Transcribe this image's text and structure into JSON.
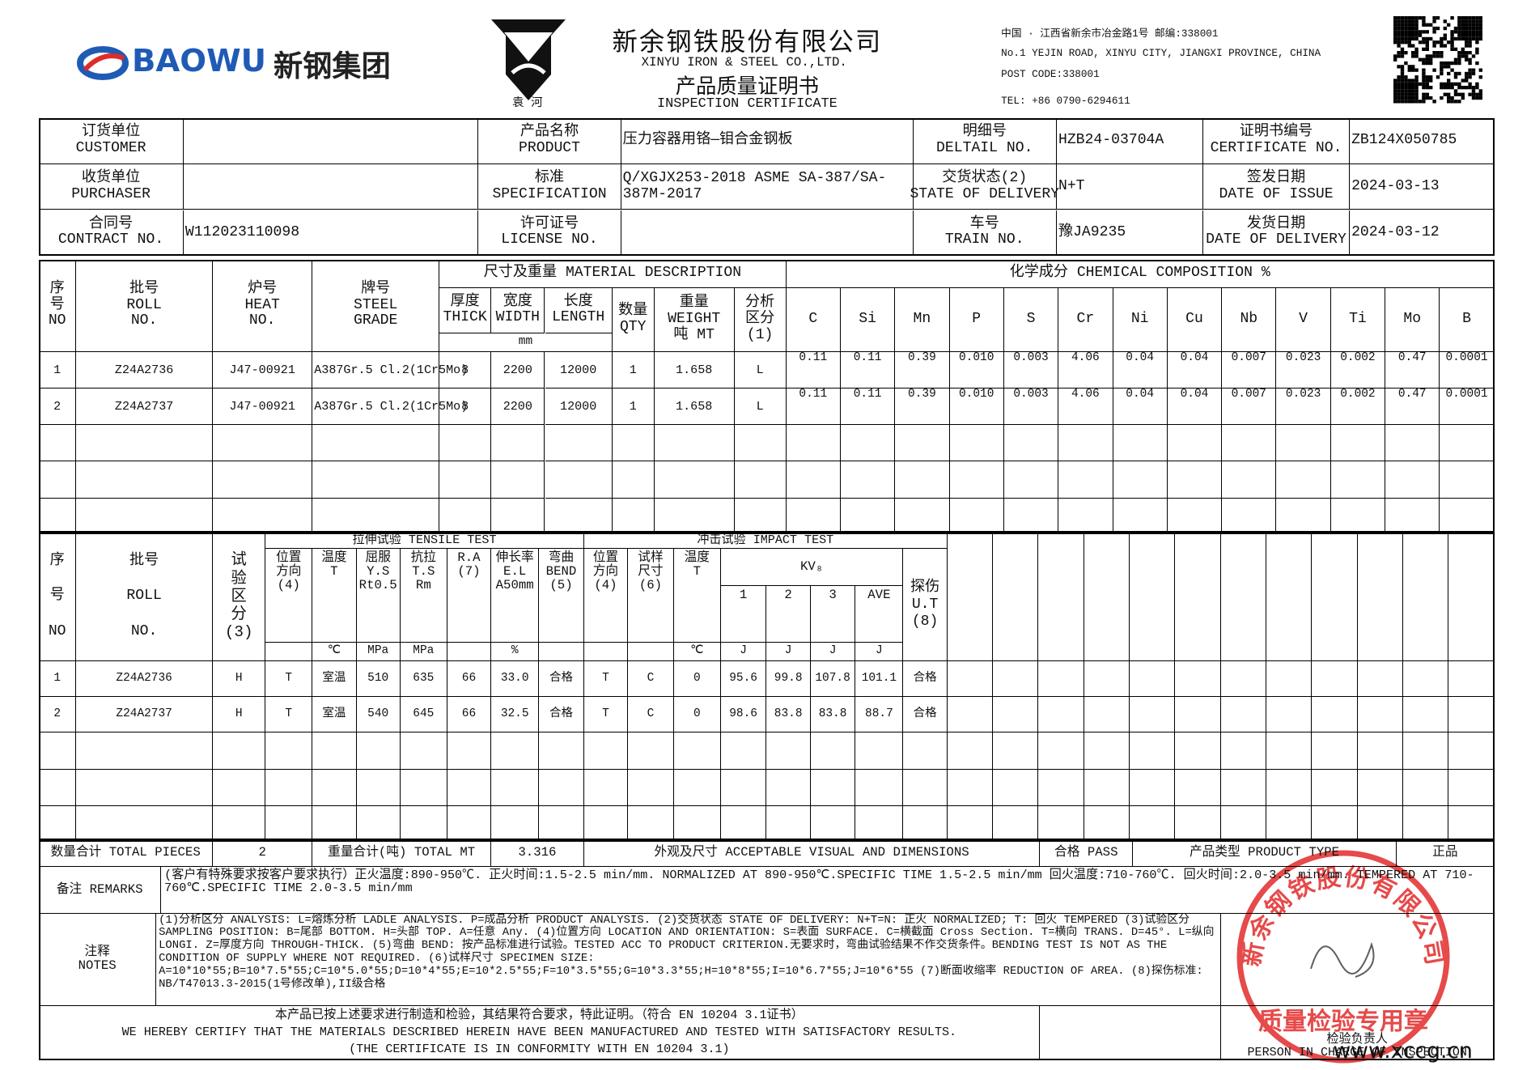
{
  "header": {
    "logo_text": "BAOWU",
    "logo_cn": "新钢集团",
    "emblem_text": "袁 河",
    "company_cn": "新余钢铁股份有限公司",
    "company_en": "XINYU IRON & STEEL CO.,LTD.",
    "title_cn": "产品质量证明书",
    "title_en": "INSPECTION CERTIFICATE",
    "address": [
      "中国 · 江西省新余市冶金路1号  邮编:338001",
      "No.1 YEJIN ROAD, XINYU CITY, JIANGXI PROVINCE, CHINA",
      "POST CODE:338001",
      "TEL: +86 0790-6294611"
    ]
  },
  "info": [
    [
      {
        "cn": "订货单位",
        "en": "CUSTOMER"
      },
      {
        "cn": "产品名称",
        "en": "PRODUCT",
        "value": "压力容器用铬—钼合金钢板"
      },
      {
        "cn": "明细号",
        "en": "DELTAIL NO.",
        "value": "HZB24-03704A"
      },
      {
        "cn": "证明书编号",
        "en": "CERTIFICATE NO.",
        "value": "ZB124X050785"
      }
    ],
    [
      {
        "cn": "收货单位",
        "en": "PURCHASER"
      },
      {
        "cn": "标准",
        "en": "SPECIFICATION",
        "value": "Q/XGJX253-2018 ASME SA-387/SA-387M-2017"
      },
      {
        "cn": "交货状态(2)",
        "en": "STATE OF DELIVERY",
        "value": "N+T"
      },
      {
        "cn": "签发日期",
        "en": "DATE OF ISSUE",
        "value": "2024-03-13"
      }
    ],
    [
      {
        "cn": "合同号",
        "en": "CONTRACT NO.",
        "value": "W112023110098"
      },
      {
        "cn": "许可证号",
        "en": "LICENSE NO."
      },
      {
        "cn": "车号",
        "en": "TRAIN NO.",
        "value": "豫JA9235"
      },
      {
        "cn": "发货日期",
        "en": "DATE OF DELIVERY",
        "value": "2024-03-12"
      }
    ]
  ],
  "chemistry": {
    "material_group": "尺寸及重量 MATERIAL DESCRIPTION",
    "chem_group": "化学成分 CHEMICAL COMPOSITION %",
    "unit_mm": "mm",
    "headers": [
      [
        "序",
        "号",
        "NO"
      ],
      [
        "批号",
        "ROLL",
        "NO."
      ],
      [
        "炉号",
        "HEAT",
        "NO."
      ],
      [
        "牌号",
        "STEEL",
        "GRADE"
      ],
      [
        "厚度",
        "THICK"
      ],
      [
        "宽度",
        "WIDTH"
      ],
      [
        "长度",
        "LENGTH"
      ],
      [
        "数量",
        "QTY"
      ],
      [
        "重量",
        "WEIGHT",
        "吨 MT"
      ],
      [
        "分析",
        "区分",
        "(1)"
      ]
    ],
    "elements": [
      "C",
      "Si",
      "Mn",
      "P",
      "S",
      "Cr",
      "Ni",
      "Cu",
      "Nb",
      "V",
      "Ti",
      "Mo",
      "B"
    ],
    "rows": [
      [
        "1",
        "Z24A2736",
        "J47-00921",
        "A387Gr.5 Cl.2(1Cr5Mo)",
        "8",
        "2200",
        "12000",
        "1",
        "1.658",
        "L",
        "0.11",
        "0.11",
        "0.39",
        "0.010",
        "0.003",
        "4.06",
        "0.04",
        "0.04",
        "0.007",
        "0.023",
        "0.002",
        "0.47",
        "0.0001"
      ],
      [
        "2",
        "Z24A2737",
        "J47-00921",
        "A387Gr.5 Cl.2(1Cr5Mo)",
        "8",
        "2200",
        "12000",
        "1",
        "1.658",
        "L",
        "0.11",
        "0.11",
        "0.39",
        "0.010",
        "0.003",
        "4.06",
        "0.04",
        "0.04",
        "0.007",
        "0.023",
        "0.002",
        "0.47",
        "0.0001"
      ]
    ]
  },
  "tensile": {
    "group_tensile": "拉伸试验 TENSILE TEST",
    "group_impact": "冲击试验 IMPACT TEST",
    "kv": "KV₈",
    "headers": [
      {
        "lines": [
          "序",
          "号",
          "NO"
        ]
      },
      {
        "lines": [
          "批号",
          "ROLL",
          "NO."
        ]
      },
      {
        "lines": [
          "试",
          "验",
          "区",
          "分",
          "(3)"
        ]
      },
      {
        "lines": [
          "位置",
          "方向",
          "(4)"
        ]
      },
      {
        "lines": [
          "温度",
          "T"
        ],
        "unit": "℃"
      },
      {
        "lines": [
          "屈服",
          "Y.S",
          "Rt0.5"
        ],
        "unit": "MPa"
      },
      {
        "lines": [
          "抗拉",
          "T.S",
          "Rm"
        ],
        "unit": "MPa"
      },
      {
        "lines": [
          "R.A",
          "(7)"
        ]
      },
      {
        "lines": [
          "伸长率",
          "E.L",
          "A50mm"
        ],
        "unit": "%"
      },
      {
        "lines": [
          "弯曲",
          "BEND",
          "(5)"
        ]
      },
      {
        "lines": [
          "位置",
          "方向",
          "(4)"
        ]
      },
      {
        "lines": [
          "试样",
          "尺寸",
          "(6)"
        ]
      },
      {
        "lines": [
          "温度",
          "T"
        ],
        "unit": "℃"
      },
      {
        "lines": [
          "1"
        ],
        "unit": "J"
      },
      {
        "lines": [
          "2"
        ],
        "unit": "J"
      },
      {
        "lines": [
          "3"
        ],
        "unit": "J"
      },
      {
        "lines": [
          "AVE"
        ],
        "unit": "J"
      },
      {
        "lines": [
          "探伤",
          "U.T",
          "(8)"
        ]
      }
    ],
    "rows": [
      [
        "1",
        "Z24A2736",
        "H",
        "T",
        "室温",
        "510",
        "635",
        "66",
        "33.0",
        "合格",
        "T",
        "C",
        "0",
        "95.6",
        "99.8",
        "107.8",
        "101.1",
        "合格"
      ],
      [
        "2",
        "Z24A2737",
        "H",
        "T",
        "室温",
        "540",
        "645",
        "66",
        "32.5",
        "合格",
        "T",
        "C",
        "0",
        "98.6",
        "83.8",
        "83.8",
        "88.7",
        "合格"
      ]
    ]
  },
  "totals": {
    "pieces_label": "数量合计 TOTAL PIECES",
    "pieces": "2",
    "mt_label": "重量合计(吨) TOTAL MT",
    "mt": "3.316",
    "visual_label": "外观及尺寸 ACCEPTABLE VISUAL AND DIMENSIONS",
    "visual": "合格 PASS",
    "type_label": "产品类型 PRODUCT TYPE",
    "type": "正品"
  },
  "remarks": {
    "label": "备注 REMARKS",
    "text": "(客户有特殊要求按客户要求执行）正火温度:890-950℃. 正火时间:1.5-2.5 min/mm. NORMALIZED AT 890-950℃.SPECIFIC TIME 1.5-2.5 min/mm 回火温度:710-760℃. 回火时间:2.0-3.5 min/mm. TEMPERED AT 710-760℃.SPECIFIC TIME 2.0-3.5 min/mm"
  },
  "notes": {
    "label_cn": "注释",
    "label_en": "NOTES",
    "text": "(1)分析区分 ANALYSIS: L=熔炼分析 LADLE ANALYSIS. P=成品分析 PRODUCT ANALYSIS. (2)交货状态 STATE OF DELIVERY: N+T=N: 正火 NORMALIZED; T: 回火 TEMPERED (3)试验区分 SAMPLING POSITION: B=尾部 BOTTOM. H=头部 TOP. A=任意 Any. (4)位置方向 LOCATION AND ORIENTATION: S=表面 SURFACE. C=横截面 Cross Section. T=横向 TRANS. D=45°. L=纵向 LONGI. Z=厚度方向 THROUGH-THICK. (5)弯曲 BEND: 按产品标准进行试验。TESTED ACC TO PRODUCT CRITERION.无要求时，弯曲试验结果不作交货条件。BENDING TEST IS NOT AS THE CONDITION OF SUPPLY WHERE NOT REQUIRED. (6)试样尺寸 SPECIMEN SIZE: A=10*10*55;B=10*7.5*55;C=10*5.0*55;D=10*4*55;E=10*2.5*55;F=10*3.5*55;G=10*3.3*55;H=10*8*55;I=10*6.7*55;J=10*6*55 (7)断面收缩率 REDUCTION OF AREA. (8)探伤标准: NB/T47013.3-2015(1号修改单),II级合格"
  },
  "certification": [
    "本产品已按上述要求进行制造和检验，其结果符合要求，特此证明。（符合 EN 10204 3.1证书）",
    "WE HEREBY CERTIFY THAT THE MATERIALS DESCRIBED HEREIN HAVE BEEN MANUFACTURED AND TESTED WITH SATISFACTORY RESULTS.",
    "(THE CERTIFICATE IS IN CONFORMITY WITH EN 10204 3.1)"
  ],
  "inspector": {
    "cn": "检验负责人",
    "en": "PERSON IN CHARGE OF INSPECTION"
  },
  "stamp": {
    "top": "新余钢铁股份有限公司",
    "bottom": "质量检验专用章"
  },
  "watermark": "www.xccg.cn"
}
